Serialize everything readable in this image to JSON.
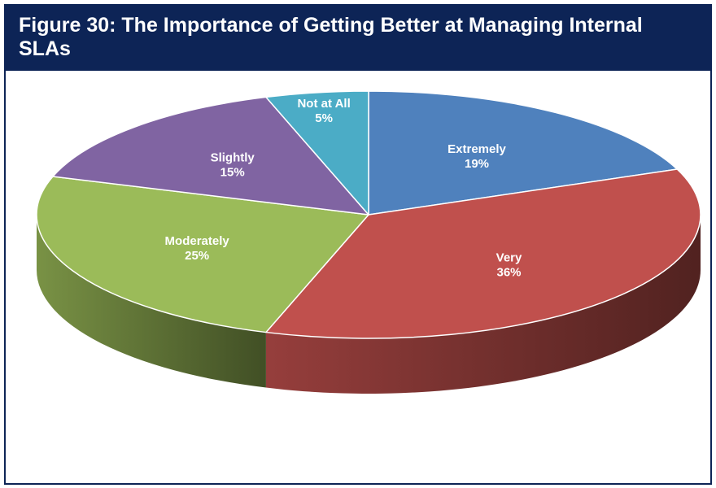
{
  "title": "Figure 30:  The Importance of Getting Better at Managing Internal SLAs",
  "chart_data": {
    "type": "pie",
    "title": "Figure 30:  The Importance of Getting Better at Managing Internal SLAs",
    "slices": [
      {
        "label": "Extremely",
        "value": 19,
        "value_text": "19%",
        "color": "#4f81bd"
      },
      {
        "label": "Very",
        "value": 36,
        "value_text": "36%",
        "color": "#c0504d"
      },
      {
        "label": "Moderately",
        "value": 25,
        "value_text": "25%",
        "color": "#9bbb59"
      },
      {
        "label": "Slightly",
        "value": 15,
        "value_text": "15%",
        "color": "#8064a2"
      },
      {
        "label": "Not at All",
        "value": 5,
        "value_text": "5%",
        "color": "#4bacc6"
      }
    ],
    "style": "3d-tilted",
    "legend": "none"
  }
}
